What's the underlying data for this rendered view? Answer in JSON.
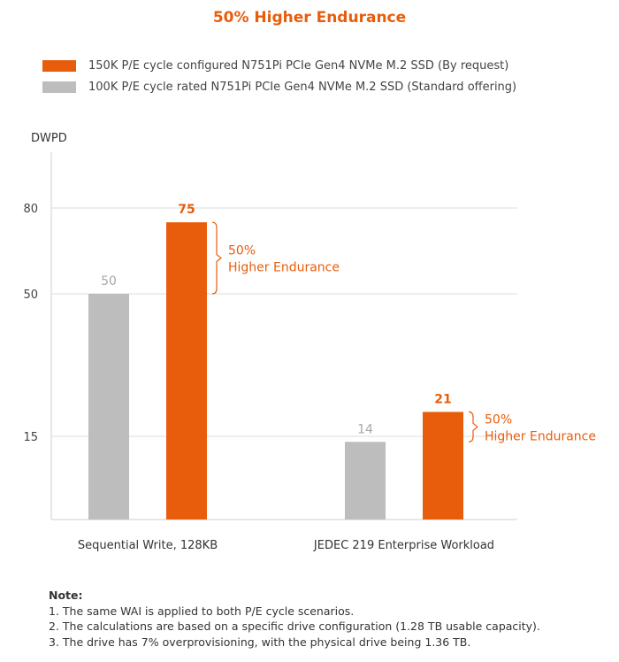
{
  "title": "50% Higher Endurance",
  "legend": [
    {
      "label": "150K P/E cycle configured N751Pi PCIe Gen4 NVMe M.2 SSD (By request)",
      "color": "#e85d0c"
    },
    {
      "label": "100K P/E cycle rated N751Pi PCIe Gen4 NVMe M.2 SSD (Standard offering)",
      "color": "#bdbdbd"
    }
  ],
  "chart_data": {
    "type": "bar",
    "ylabel": "DWPD",
    "yticks": [
      15,
      50,
      80
    ],
    "categories": [
      "Sequential Write, 128KB",
      "JEDEC 219 Enterprise Workload"
    ],
    "series": [
      {
        "name": "100K P/E cycle rated N751Pi PCIe Gen4 NVMe M.2 SSD (Standard offering)",
        "color": "#bdbdbd",
        "label_color": "#a8a8a8",
        "values": [
          50,
          14
        ]
      },
      {
        "name": "150K P/E cycle configured N751Pi PCIe Gen4 NVMe M.2 SSD (By request)",
        "color": "#e85d0c",
        "label_color": "#e85d0c",
        "values": [
          75,
          21
        ]
      }
    ],
    "annotations": [
      {
        "category": 0,
        "lines": [
          "50%",
          "Higher Endurance"
        ]
      },
      {
        "category": 1,
        "lines": [
          "50%",
          "Higher Endurance"
        ]
      }
    ],
    "grid": true,
    "legend_position": "top-left"
  },
  "notes": {
    "heading": "Note:",
    "items": [
      "1. The same WAI is applied to both P/E cycle scenarios.",
      "2. The calculations are based on a specific drive configuration (1.28 TB usable capacity).",
      "3. The drive has 7% overprovisioning, with the physical drive being 1.36 TB."
    ]
  }
}
